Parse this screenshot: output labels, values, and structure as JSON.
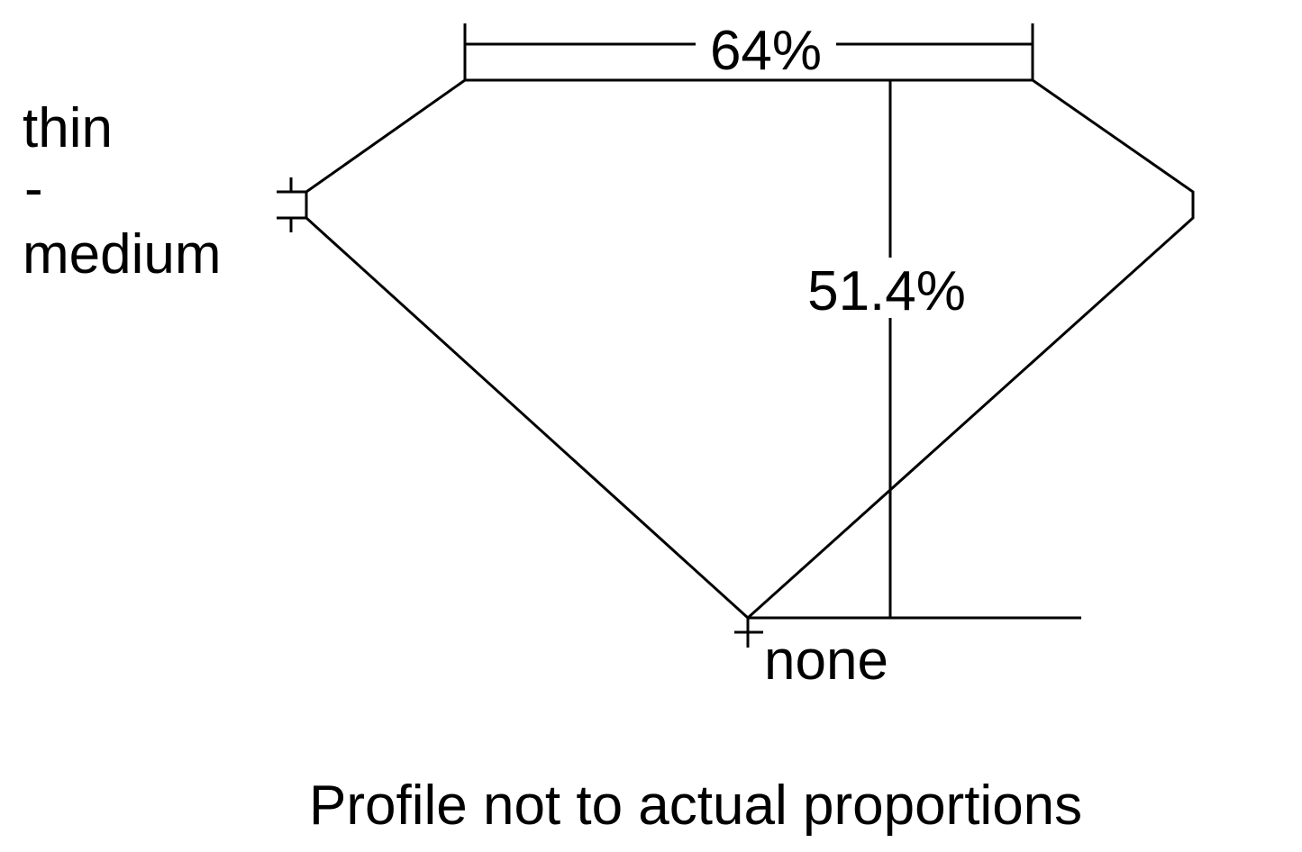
{
  "labels": {
    "table_percent": "64%",
    "depth_percent": "51.4%",
    "girdle_top": "thin",
    "girdle_dash": "-",
    "girdle_bottom": "medium",
    "culet": "none",
    "caption": "Profile not to actual proportions"
  },
  "colors": {
    "line": "#000000",
    "background": "#ffffff"
  }
}
